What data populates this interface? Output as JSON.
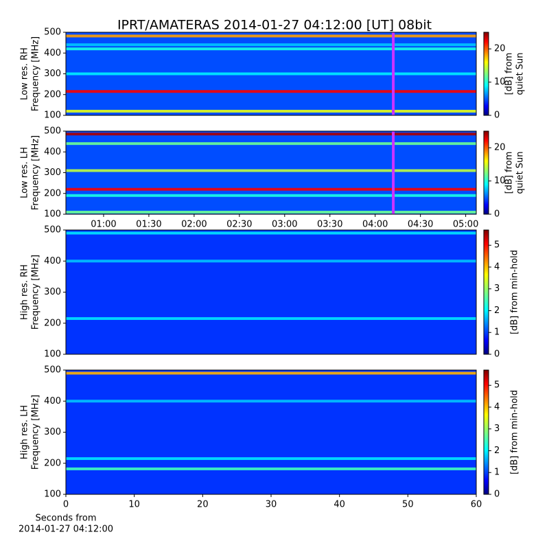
{
  "chart_data": [
    {
      "type": "heatmap",
      "title": "IPRT/AMATERAS 2014-01-27 04:12:00 [UT]   08bit",
      "ylabel": [
        "Low res. RH",
        "Frequency [MHz]"
      ],
      "ylim": [
        100,
        500
      ],
      "yticks": [
        100,
        200,
        300,
        400,
        500
      ],
      "xlim": [
        35,
        307
      ],
      "marker": 252,
      "marker_color": "#cc33ff",
      "clim": [
        0,
        25
      ],
      "cticks": [
        0,
        10,
        20
      ],
      "clabel": [
        "[dB] from",
        "quiet Sun"
      ],
      "background": 5,
      "bands": [
        {
          "freq": 215,
          "level": 22
        },
        {
          "freq": 482,
          "level": 18
        },
        {
          "freq": 120,
          "level": 15
        },
        {
          "freq": 420,
          "level": 10
        },
        {
          "freq": 300,
          "level": 9
        },
        {
          "freq": 440,
          "level": 8
        }
      ]
    },
    {
      "type": "heatmap",
      "ylabel": [
        "Low res. LH",
        "Frequency [MHz]"
      ],
      "ylim": [
        100,
        500
      ],
      "yticks": [
        100,
        200,
        300,
        400,
        500
      ],
      "xlim": [
        35,
        307
      ],
      "xticks": [
        {
          "value": 60,
          "label": "01:00"
        },
        {
          "value": 90,
          "label": "01:30"
        },
        {
          "value": 120,
          "label": "02:00"
        },
        {
          "value": 150,
          "label": "02:30"
        },
        {
          "value": 180,
          "label": "03:00"
        },
        {
          "value": 210,
          "label": "03:30"
        },
        {
          "value": 240,
          "label": "04:00"
        },
        {
          "value": 270,
          "label": "04:30"
        },
        {
          "value": 300,
          "label": "05:00"
        }
      ],
      "marker": 252,
      "marker_color": "#cc33ff",
      "clim": [
        0,
        25
      ],
      "cticks": [
        0,
        10,
        20
      ],
      "clabel": [
        "[dB] from",
        "quiet Sun"
      ],
      "background": 5,
      "bands": [
        {
          "freq": 220,
          "level": 22
        },
        {
          "freq": 486,
          "level": 24
        },
        {
          "freq": 310,
          "level": 14
        },
        {
          "freq": 440,
          "level": 12
        },
        {
          "freq": 110,
          "level": 12
        },
        {
          "freq": 190,
          "level": 10
        }
      ]
    },
    {
      "type": "heatmap",
      "ylabel": [
        "High res. RH",
        "Frequency [MHz]"
      ],
      "ylim": [
        100,
        500
      ],
      "yticks": [
        100,
        200,
        300,
        400,
        500
      ],
      "xlim": [
        0,
        60
      ],
      "clim": [
        0,
        5.7
      ],
      "cticks": [
        0,
        1,
        2,
        3,
        4,
        5
      ],
      "clabel": [
        "[dB] from min-hold"
      ],
      "background": 1,
      "bands": [
        {
          "freq": 215,
          "level": 2
        },
        {
          "freq": 490,
          "level": 2
        },
        {
          "freq": 400,
          "level": 1.8
        }
      ]
    },
    {
      "type": "heatmap",
      "ylabel": [
        "High res. LH",
        "Frequency [MHz]"
      ],
      "ylim": [
        100,
        500
      ],
      "yticks": [
        100,
        200,
        300,
        400,
        500
      ],
      "xlim": [
        0,
        60
      ],
      "xticks": [
        0,
        10,
        20,
        30,
        40,
        50,
        60
      ],
      "xlabel": [
        "Seconds from",
        "2014-01-27 04:12:00"
      ],
      "clim": [
        0,
        5.7
      ],
      "cticks": [
        0,
        1,
        2,
        3,
        4,
        5
      ],
      "clabel": [
        "[dB] from min-hold"
      ],
      "background": 1,
      "bands": [
        {
          "freq": 490,
          "level": 4
        },
        {
          "freq": 215,
          "level": 2
        },
        {
          "freq": 182,
          "level": 2.5
        },
        {
          "freq": 400,
          "level": 1.8
        }
      ]
    }
  ]
}
